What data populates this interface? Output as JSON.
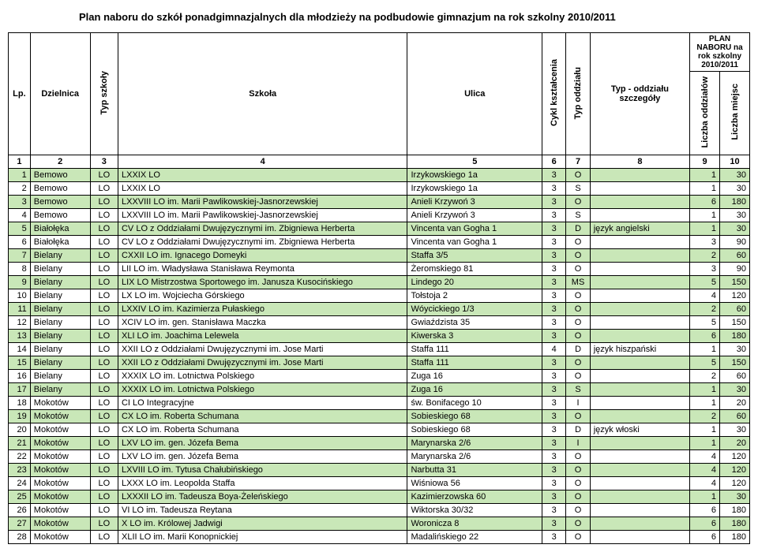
{
  "title": "Plan naboru do szkół ponadgimnazjalnych dla młodzieży na podbudowie gimnazjum na rok szkolny 2010/2011",
  "headers": {
    "lp": "Lp.",
    "dzielnica": "Dzielnica",
    "typ_szkoly": "Typ szkoły",
    "szkola": "Szkoła",
    "ulica": "Ulica",
    "cykl": "Cykl kształcenia",
    "typ_oddzialu": "Typ oddziału",
    "szczegoly": "Typ - oddziału szczegóły",
    "plan_group": "PLAN NABORU na rok szkolny 2010/2011",
    "liczba_oddzialow": "Liczba oddziałów",
    "liczba_miejsc": "Liczba miejsc"
  },
  "numrow": [
    "1",
    "2",
    "3",
    "4",
    "5",
    "6",
    "7",
    "8",
    "9",
    "10"
  ],
  "rows": [
    {
      "lp": "1",
      "dz": "Bemowo",
      "typ": "LO",
      "szk": "LXXIX LO",
      "ul": "Irzykowskiego 1a",
      "cykl": "3",
      "todd": "O",
      "szcz": "",
      "lodd": "1",
      "lm": "30"
    },
    {
      "lp": "2",
      "dz": "Bemowo",
      "typ": "LO",
      "szk": "LXXIX LO",
      "ul": "Irzykowskiego 1a",
      "cykl": "3",
      "todd": "S",
      "szcz": "",
      "lodd": "1",
      "lm": "30"
    },
    {
      "lp": "3",
      "dz": "Bemowo",
      "typ": "LO",
      "szk": "LXXVIII LO im. Marii Pawlikowskiej-Jasnorzewskiej",
      "ul": "Anieli Krzywoń 3",
      "cykl": "3",
      "todd": "O",
      "szcz": "",
      "lodd": "6",
      "lm": "180"
    },
    {
      "lp": "4",
      "dz": "Bemowo",
      "typ": "LO",
      "szk": "LXXVIII LO im. Marii Pawlikowskiej-Jasnorzewskiej",
      "ul": "Anieli Krzywoń 3",
      "cykl": "3",
      "todd": "S",
      "szcz": "",
      "lodd": "1",
      "lm": "30"
    },
    {
      "lp": "5",
      "dz": "Białołęka",
      "typ": "LO",
      "szk": "CV LO z Oddziałami Dwujęzycznymi im. Zbigniewa Herberta",
      "ul": "Vincenta van Gogha 1",
      "cykl": "3",
      "todd": "D",
      "szcz": "język angielski",
      "lodd": "1",
      "lm": "30",
      "wrap": true
    },
    {
      "lp": "6",
      "dz": "Białołęka",
      "typ": "LO",
      "szk": "CV LO z Oddziałami Dwujęzycznymi im. Zbigniewa Herberta",
      "ul": "Vincenta van Gogha 1",
      "cykl": "3",
      "todd": "O",
      "szcz": "",
      "lodd": "3",
      "lm": "90",
      "wrap": true
    },
    {
      "lp": "7",
      "dz": "Bielany",
      "typ": "LO",
      "szk": "CXXII LO im. Ignacego Domeyki",
      "ul": "Staffa 3/5",
      "cykl": "3",
      "todd": "O",
      "szcz": "",
      "lodd": "2",
      "lm": "60"
    },
    {
      "lp": "8",
      "dz": "Bielany",
      "typ": "LO",
      "szk": "LII LO im. Władysława Stanisława Reymonta",
      "ul": "Żeromskiego 81",
      "cykl": "3",
      "todd": "O",
      "szcz": "",
      "lodd": "3",
      "lm": "90"
    },
    {
      "lp": "9",
      "dz": "Bielany",
      "typ": "LO",
      "szk": "LIX LO Mistrzostwa Sportowego im. Janusza Kusocińskiego",
      "ul": "Lindego 20",
      "cykl": "3",
      "todd": "MS",
      "szcz": "",
      "lodd": "5",
      "lm": "150",
      "wrap": true
    },
    {
      "lp": "10",
      "dz": "Bielany",
      "typ": "LO",
      "szk": "LX LO im. Wojciecha Górskiego",
      "ul": "Tołstoja 2",
      "cykl": "3",
      "todd": "O",
      "szcz": "",
      "lodd": "4",
      "lm": "120"
    },
    {
      "lp": "11",
      "dz": "Bielany",
      "typ": "LO",
      "szk": "LXXIV LO im. Kazimierza Pułaskiego",
      "ul": "Wóycickiego 1/3",
      "cykl": "3",
      "todd": "O",
      "szcz": "",
      "lodd": "2",
      "lm": "60"
    },
    {
      "lp": "12",
      "dz": "Bielany",
      "typ": "LO",
      "szk": "XCIV LO im. gen. Stanisława Maczka",
      "ul": "Gwiaździsta 35",
      "cykl": "3",
      "todd": "O",
      "szcz": "",
      "lodd": "5",
      "lm": "150"
    },
    {
      "lp": "13",
      "dz": "Bielany",
      "typ": "LO",
      "szk": "XLI LO im. Joachima Lelewela",
      "ul": "Kiwerska 3",
      "cykl": "3",
      "todd": "O",
      "szcz": "",
      "lodd": "6",
      "lm": "180"
    },
    {
      "lp": "14",
      "dz": "Bielany",
      "typ": "LO",
      "szk": "XXII LO z Oddziałami Dwujęzycznymi im. Jose Marti",
      "ul": "Staffa 111",
      "cykl": "4",
      "todd": "D",
      "szcz": "język hiszpański",
      "lodd": "1",
      "lm": "30"
    },
    {
      "lp": "15",
      "dz": "Bielany",
      "typ": "LO",
      "szk": "XXII LO z Oddziałami Dwujęzycznymi im. Jose Marti",
      "ul": "Staffa 111",
      "cykl": "3",
      "todd": "O",
      "szcz": "",
      "lodd": "5",
      "lm": "150"
    },
    {
      "lp": "16",
      "dz": "Bielany",
      "typ": "LO",
      "szk": "XXXIX LO im. Lotnictwa Polskiego",
      "ul": "Zuga 16",
      "cykl": "3",
      "todd": "O",
      "szcz": "",
      "lodd": "2",
      "lm": "60"
    },
    {
      "lp": "17",
      "dz": "Bielany",
      "typ": "LO",
      "szk": "XXXIX LO im. Lotnictwa Polskiego",
      "ul": "Zuga 16",
      "cykl": "3",
      "todd": "S",
      "szcz": "",
      "lodd": "1",
      "lm": "30"
    },
    {
      "lp": "18",
      "dz": "Mokotów",
      "typ": "LO",
      "szk": "CI LO Integracyjne",
      "ul": "św. Bonifacego 10",
      "cykl": "3",
      "todd": "I",
      "szcz": "",
      "lodd": "1",
      "lm": "20"
    },
    {
      "lp": "19",
      "dz": "Mokotów",
      "typ": "LO",
      "szk": "CX LO im. Roberta Schumana",
      "ul": "Sobieskiego 68",
      "cykl": "3",
      "todd": "O",
      "szcz": "",
      "lodd": "2",
      "lm": "60"
    },
    {
      "lp": "20",
      "dz": "Mokotów",
      "typ": "LO",
      "szk": "CX LO im. Roberta Schumana",
      "ul": "Sobieskiego 68",
      "cykl": "3",
      "todd": "D",
      "szcz": "język włoski",
      "lodd": "1",
      "lm": "30"
    },
    {
      "lp": "21",
      "dz": "Mokotów",
      "typ": "LO",
      "szk": "LXV LO im. gen. Józefa  Bema",
      "ul": "Marynarska 2/6",
      "cykl": "3",
      "todd": "I",
      "szcz": "",
      "lodd": "1",
      "lm": "20"
    },
    {
      "lp": "22",
      "dz": "Mokotów",
      "typ": "LO",
      "szk": "LXV LO im. gen. Józefa  Bema",
      "ul": "Marynarska 2/6",
      "cykl": "3",
      "todd": "O",
      "szcz": "",
      "lodd": "4",
      "lm": "120"
    },
    {
      "lp": "23",
      "dz": "Mokotów",
      "typ": "LO",
      "szk": "LXVIII LO im. Tytusa Chałubińskiego",
      "ul": "Narbutta 31",
      "cykl": "3",
      "todd": "O",
      "szcz": "",
      "lodd": "4",
      "lm": "120"
    },
    {
      "lp": "24",
      "dz": "Mokotów",
      "typ": "LO",
      "szk": "LXXX LO im. Leopolda Staffa",
      "ul": "Wiśniowa 56",
      "cykl": "3",
      "todd": "O",
      "szcz": "",
      "lodd": "4",
      "lm": "120"
    },
    {
      "lp": "25",
      "dz": "Mokotów",
      "typ": "LO",
      "szk": "LXXXII LO im. Tadeusza Boya-Żeleńskiego",
      "ul": "Kazimierzowska 60",
      "cykl": "3",
      "todd": "O",
      "szcz": "",
      "lodd": "1",
      "lm": "30"
    },
    {
      "lp": "26",
      "dz": "Mokotów",
      "typ": "LO",
      "szk": "VI LO im. Tadeusza Reytana",
      "ul": "Wiktorska 30/32",
      "cykl": "3",
      "todd": "O",
      "szcz": "",
      "lodd": "6",
      "lm": "180"
    },
    {
      "lp": "27",
      "dz": "Mokotów",
      "typ": "LO",
      "szk": "X LO im. Królowej Jadwigi",
      "ul": "Woronicza 8",
      "cykl": "3",
      "todd": "O",
      "szcz": "",
      "lodd": "6",
      "lm": "180"
    },
    {
      "lp": "28",
      "dz": "Mokotów",
      "typ": "LO",
      "szk": "XLII LO im. Marii Konopnickiej",
      "ul": "Madalińskiego 22",
      "cykl": "3",
      "todd": "O",
      "szcz": "",
      "lodd": "6",
      "lm": "180"
    }
  ]
}
